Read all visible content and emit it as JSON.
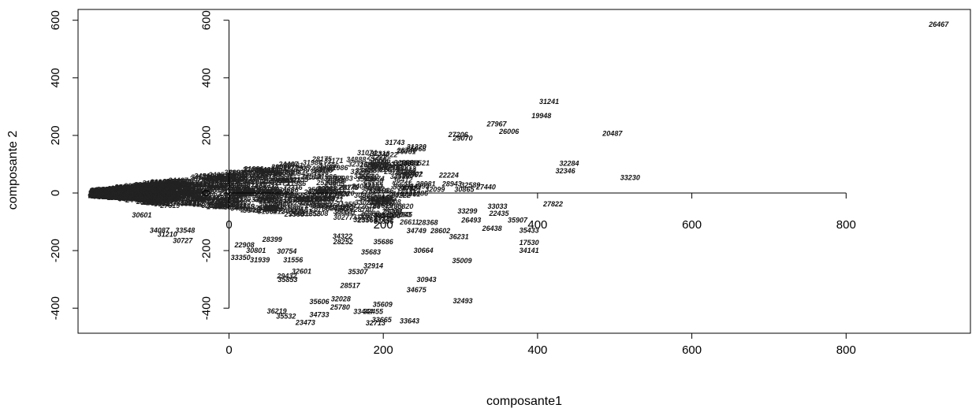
{
  "chart_data": {
    "type": "scatter",
    "xlabel": "composante1",
    "ylabel": "composante 2",
    "xlim": [
      -195,
      965
    ],
    "ylim": [
      -490,
      620
    ],
    "x_ticks": [
      0,
      200,
      400,
      600,
      800
    ],
    "y_ticks": [
      -400,
      -200,
      0,
      200,
      400,
      600
    ],
    "inner_x_ticks": [
      0,
      200,
      400,
      600,
      800
    ],
    "inner_y_ticks": [
      -400,
      -200,
      0,
      200,
      400,
      600
    ],
    "marker": "text-label",
    "points": [
      {
        "label": "26467",
        "x": 920,
        "y": 585
      },
      {
        "label": "31241",
        "x": 415,
        "y": 318
      },
      {
        "label": "19948",
        "x": 405,
        "y": 268
      },
      {
        "label": "27967",
        "x": 347,
        "y": 239
      },
      {
        "label": "26006",
        "x": 363,
        "y": 214
      },
      {
        "label": "20487",
        "x": 497,
        "y": 206
      },
      {
        "label": "27206",
        "x": 297,
        "y": 202
      },
      {
        "label": "29070",
        "x": 303,
        "y": 190
      },
      {
        "label": "31743",
        "x": 215,
        "y": 175
      },
      {
        "label": "31220",
        "x": 243,
        "y": 160
      },
      {
        "label": "28921",
        "x": 234,
        "y": 103
      },
      {
        "label": "32284",
        "x": 441,
        "y": 102
      },
      {
        "label": "32346",
        "x": 436,
        "y": 77
      },
      {
        "label": "33230",
        "x": 520,
        "y": 53
      },
      {
        "label": "22224",
        "x": 285,
        "y": 62
      },
      {
        "label": "28981",
        "x": 255,
        "y": 32
      },
      {
        "label": "28943",
        "x": 289,
        "y": 32
      },
      {
        "label": "32589",
        "x": 313,
        "y": 28
      },
      {
        "label": "27440",
        "x": 333,
        "y": 21
      },
      {
        "label": "30865",
        "x": 305,
        "y": 12
      },
      {
        "label": "32099",
        "x": 267,
        "y": 12
      },
      {
        "label": "30324",
        "x": 236,
        "y": 16
      },
      {
        "label": "27822",
        "x": 420,
        "y": -38
      },
      {
        "label": "33033",
        "x": 348,
        "y": -47
      },
      {
        "label": "33299",
        "x": 309,
        "y": -63
      },
      {
        "label": "22435",
        "x": 350,
        "y": -71
      },
      {
        "label": "26493",
        "x": 314,
        "y": -94
      },
      {
        "label": "35907",
        "x": 374,
        "y": -94
      },
      {
        "label": "26438",
        "x": 341,
        "y": -123
      },
      {
        "label": "35433",
        "x": 389,
        "y": -130
      },
      {
        "label": "28368",
        "x": 258,
        "y": -102
      },
      {
        "label": "34749",
        "x": 243,
        "y": -132
      },
      {
        "label": "28602",
        "x": 274,
        "y": -132
      },
      {
        "label": "36231",
        "x": 298,
        "y": -152
      },
      {
        "label": "17530",
        "x": 389,
        "y": -173
      },
      {
        "label": "34141",
        "x": 389,
        "y": -200
      },
      {
        "label": "30664",
        "x": 252,
        "y": -200
      },
      {
        "label": "35009",
        "x": 302,
        "y": -235
      },
      {
        "label": "35683",
        "x": 184,
        "y": -205
      },
      {
        "label": "32914",
        "x": 187,
        "y": -253
      },
      {
        "label": "35307",
        "x": 167,
        "y": -274
      },
      {
        "label": "30943",
        "x": 256,
        "y": -301
      },
      {
        "label": "34675",
        "x": 243,
        "y": -337
      },
      {
        "label": "28517",
        "x": 157,
        "y": -321
      },
      {
        "label": "32493",
        "x": 303,
        "y": -375
      },
      {
        "label": "32028",
        "x": 145,
        "y": -368
      },
      {
        "label": "35606",
        "x": 117,
        "y": -377
      },
      {
        "label": "35609",
        "x": 199,
        "y": -387
      },
      {
        "label": "25780",
        "x": 144,
        "y": -397
      },
      {
        "label": "34733",
        "x": 117,
        "y": -423
      },
      {
        "label": "33444",
        "x": 174,
        "y": -412
      },
      {
        "label": "32455",
        "x": 187,
        "y": -412
      },
      {
        "label": "33665",
        "x": 198,
        "y": -440
      },
      {
        "label": "33643",
        "x": 234,
        "y": -444
      },
      {
        "label": "32713",
        "x": 190,
        "y": -451
      },
      {
        "label": "36219",
        "x": 62,
        "y": -411
      },
      {
        "label": "35532",
        "x": 74,
        "y": -428
      },
      {
        "label": "23473",
        "x": 99,
        "y": -450
      },
      {
        "label": "32601",
        "x": 94,
        "y": -272
      },
      {
        "label": "29432",
        "x": 75,
        "y": -289
      },
      {
        "label": "35853",
        "x": 76,
        "y": -301
      },
      {
        "label": "33350",
        "x": 15,
        "y": -225
      },
      {
        "label": "31939",
        "x": 40,
        "y": -232
      },
      {
        "label": "31556",
        "x": 83,
        "y": -232
      },
      {
        "label": "30801",
        "x": 35,
        "y": -200
      },
      {
        "label": "30754",
        "x": 75,
        "y": -203
      },
      {
        "label": "22908",
        "x": 20,
        "y": -180
      },
      {
        "label": "28399",
        "x": 56,
        "y": -161
      },
      {
        "label": "34087",
        "x": -90,
        "y": -130
      },
      {
        "label": "33548",
        "x": -57,
        "y": -130
      },
      {
        "label": "31210",
        "x": -80,
        "y": -143
      },
      {
        "label": "30727",
        "x": -60,
        "y": -165
      },
      {
        "label": "30601",
        "x": -113,
        "y": -76
      },
      {
        "label": "34322",
        "x": 147,
        "y": -150
      },
      {
        "label": "28252",
        "x": 148,
        "y": -170
      },
      {
        "label": "35686",
        "x": 200,
        "y": -170
      },
      {
        "label": "35540",
        "x": 200,
        "y": -78
      }
    ],
    "blob_labels": [
      "23874",
      "31886",
      "25968",
      "31986",
      "32083",
      "34993",
      "33553",
      "36412",
      "24905",
      "32316",
      "33245",
      "29056",
      "31355",
      "25566",
      "28067",
      "31171",
      "35867",
      "28175",
      "26766",
      "24222",
      "35820",
      "33021",
      "34888",
      "32155",
      "26611",
      "31074",
      "33818",
      "29320",
      "24467",
      "35521",
      "28740",
      "31662",
      "30945",
      "25208",
      "36061",
      "27619",
      "33402",
      "29781",
      "24053",
      "30277",
      "34512",
      "26988"
    ]
  }
}
